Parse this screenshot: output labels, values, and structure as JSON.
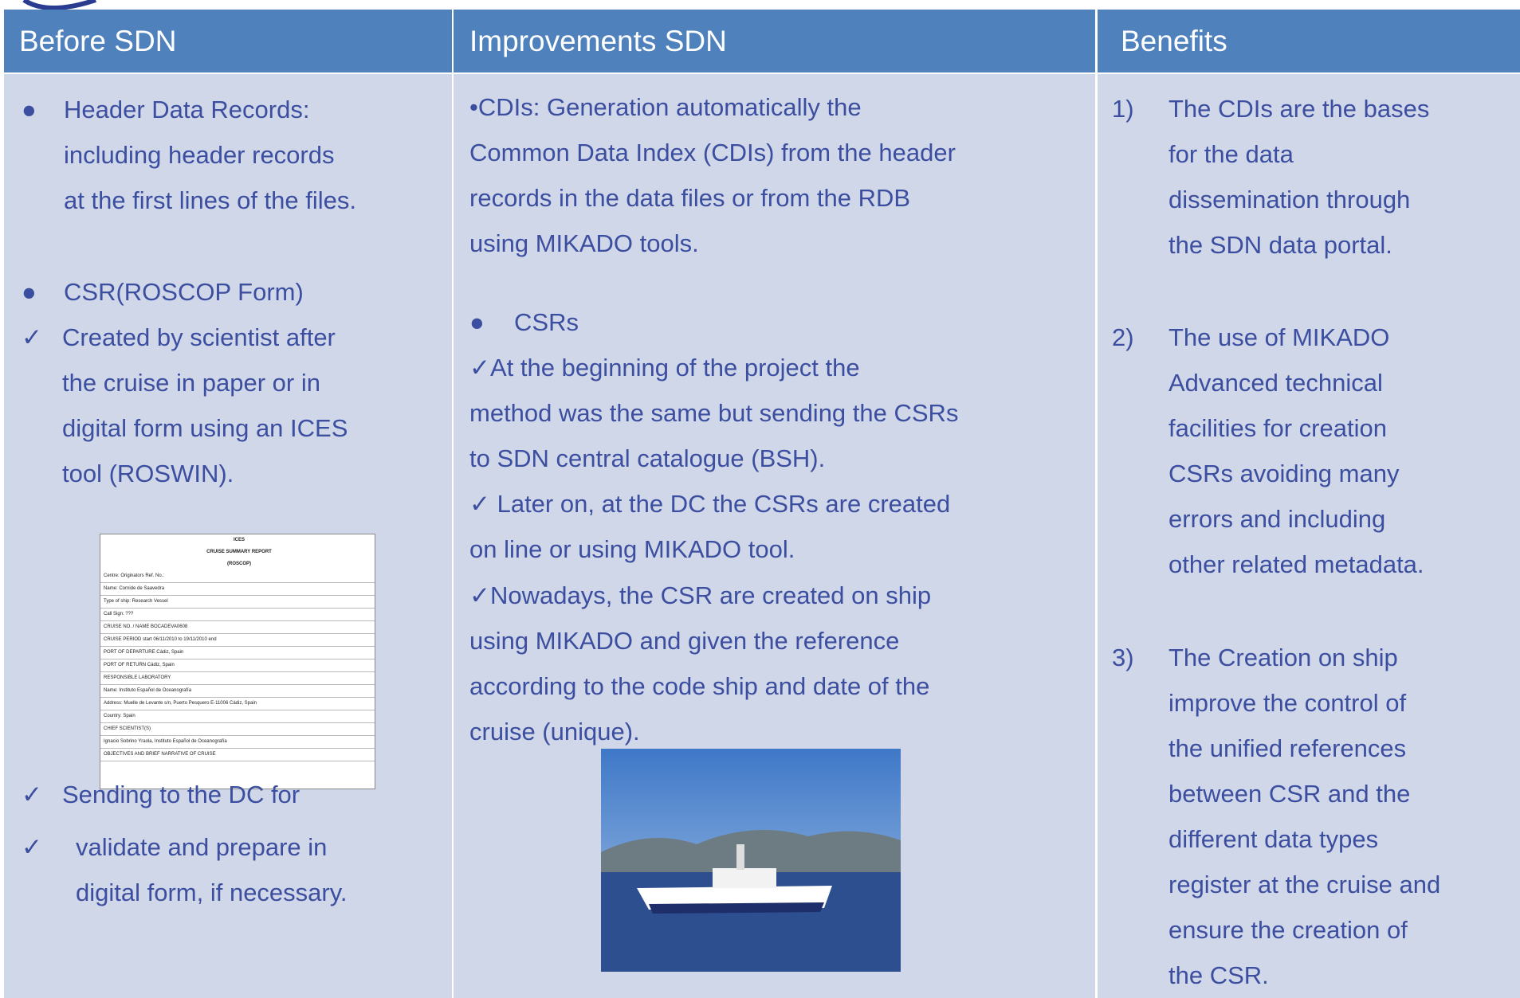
{
  "table": {
    "headers": [
      "Before SDN",
      "Improvements SDN",
      "Benefits"
    ],
    "columns": [
      [
        {
          "marker": "●",
          "lines": [
            "Header Data Records:",
            "including header records",
            "at the first lines of the files."
          ]
        },
        {
          "marker": "●",
          "lines": [
            "CSR(ROSCOP Form)"
          ]
        },
        {
          "marker": "✓",
          "lines": [
            "Created by scientist after",
            "the cruise  in paper or in",
            "digital form using an ICES",
            "tool (ROSWIN)."
          ]
        },
        {
          "marker": "✓",
          "lines": [
            "Sending to the DC for"
          ]
        },
        {
          "marker": "✓",
          "lines": [
            "validate and prepare in",
            "digital form, if necessary."
          ]
        }
      ],
      [
        {
          "lines": [
            "•CDIs: Generation automatically the",
            "Common Data Index (CDIs) from the header",
            "records in the data files or from the RDB",
            "using MIKADO tools."
          ]
        },
        {
          "marker": "●",
          "lines": [
            "CSRs"
          ]
        },
        {
          "lines": [
            "✓At the beginning of the project the",
            "method was the same but sending the CSRs",
            "to SDN central catalogue (BSH)."
          ]
        },
        {
          "lines": [
            "✓ Later on, at the DC the CSRs are created",
            "on line or using MIKADO tool."
          ]
        },
        {
          "lines": [
            "✓Nowadays, the CSR are created on ship",
            "using MIKADO and given the reference",
            "according to the code ship and date of the",
            "cruise (unique)."
          ]
        }
      ],
      [
        {
          "marker": "1)",
          "lines": [
            "The CDIs are the bases",
            "for the data",
            "dissemination through",
            "the SDN data portal."
          ]
        },
        {
          "marker": "2)",
          "lines": [
            "The use of MIKADO",
            "Advanced technical",
            "facilities for creation",
            "CSRs avoiding many",
            "errors and including",
            "other related metadata."
          ]
        },
        {
          "marker": "3)",
          "lines": [
            "The Creation on ship",
            "improve the control of",
            "the unified references",
            "between CSR and the",
            "different data types",
            "register at the cruise and",
            "ensure the creation of",
            "the CSR."
          ]
        }
      ]
    ]
  },
  "form": [
    "ICES",
    "CRUISE SUMMARY REPORT",
    "(ROSCOP)",
    "Centre: Originators Ref. No.:",
    "Name: Cornide de Saavedra",
    "Type of ship: Research Vessel",
    "Call Sign: ???",
    "CRUISE NO. / NAME BOCADEVA0608",
    "CRUISE PERIOD  start 06/11/2010  to  19/11/2010  end",
    "PORT OF DEPARTURE Cádiz, Spain",
    "PORT OF RETURN Cádiz, Spain",
    "RESPONSIBLE LABORATORY",
    "Name: Instituto Español de Oceanografía",
    "Address: Muelle de Levante s/n, Puerto Pesquero E-11006 Cádiz, Spain",
    "Country: Spain",
    "CHIEF SCIENTIST(S)",
    "Ignacio Sobrino Yraola, Instituto Español de Oceanografía",
    "OBJECTIVES AND BRIEF NARRATIVE OF CRUISE"
  ]
}
